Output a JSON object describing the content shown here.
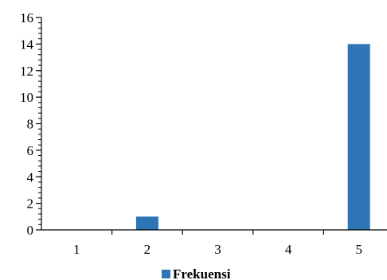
{
  "chart_data": {
    "type": "bar",
    "categories": [
      "1",
      "2",
      "3",
      "4",
      "5"
    ],
    "series": [
      {
        "name": "Frekuensi",
        "values": [
          0,
          1,
          0,
          0,
          14
        ],
        "color": "#2E75B6"
      }
    ],
    "ylim": [
      0,
      16
    ],
    "y_ticks": [
      "0",
      "2",
      "4",
      "6",
      "8",
      "10",
      "12",
      "14",
      "16"
    ],
    "y_minor_step": 0.4,
    "grid": false,
    "legend": {
      "position": "bottom",
      "label": "Frekuensi"
    }
  }
}
